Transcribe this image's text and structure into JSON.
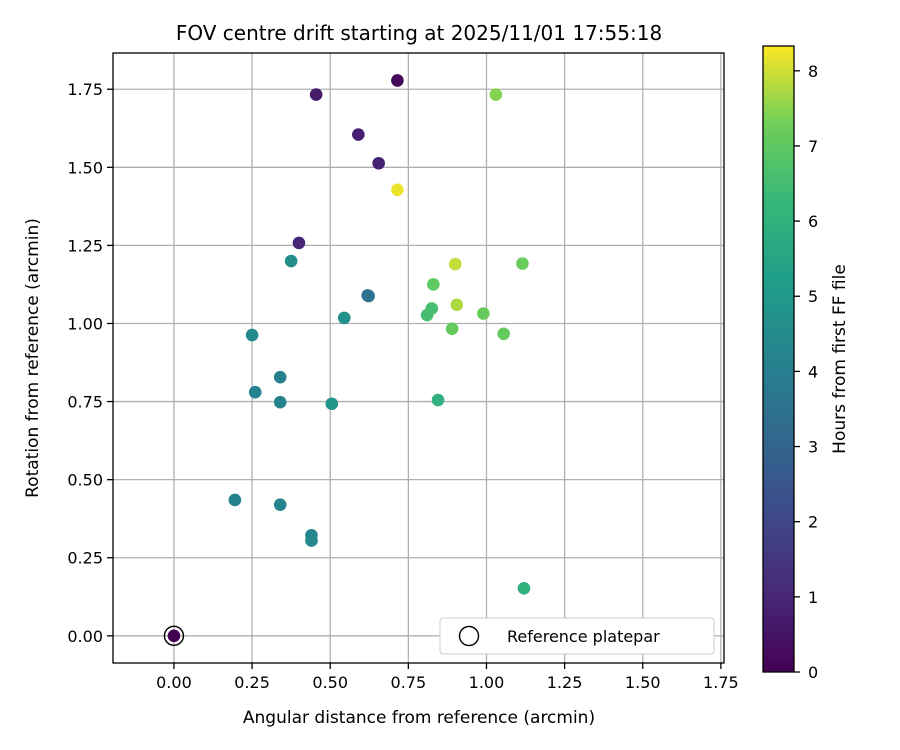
{
  "chart_data": {
    "type": "scatter",
    "title": "FOV centre drift starting at 2025/11/01 17:55:18",
    "xlabel": "Angular distance from reference (arcmin)",
    "ylabel": "Rotation from reference (arcmin)",
    "xlim": [
      -0.195,
      1.76
    ],
    "ylim": [
      -0.087,
      1.866
    ],
    "xticks": [
      0.0,
      0.25,
      0.5,
      0.75,
      1.0,
      1.25,
      1.5,
      1.75
    ],
    "yticks": [
      0.0,
      0.25,
      0.5,
      0.75,
      1.0,
      1.25,
      1.5,
      1.75
    ],
    "xtick_labels": [
      "0.00",
      "0.25",
      "0.50",
      "0.75",
      "1.00",
      "1.25",
      "1.50",
      "1.75"
    ],
    "ytick_labels": [
      "0.00",
      "0.25",
      "0.50",
      "0.75",
      "1.00",
      "1.25",
      "1.50",
      "1.75"
    ],
    "grid": true,
    "colorbar": {
      "label": "Hours from first FF file",
      "colormap": "viridis",
      "range": [
        0,
        8.33
      ],
      "ticks": [
        0,
        1,
        2,
        3,
        4,
        5,
        6,
        7,
        8
      ],
      "tick_labels": [
        "0",
        "1",
        "2",
        "3",
        "4",
        "5",
        "6",
        "7",
        "8"
      ]
    },
    "legend": {
      "location": "bottom-right",
      "entries": [
        "Reference platepar"
      ]
    },
    "reference_point": {
      "x": 0.0,
      "y": 0.0
    },
    "points": [
      {
        "x": 0.0,
        "y": 0.0,
        "hours": 0.0
      },
      {
        "x": 0.715,
        "y": 1.778,
        "hours": 0.15
      },
      {
        "x": 0.455,
        "y": 1.733,
        "hours": 0.7
      },
      {
        "x": 0.59,
        "y": 1.605,
        "hours": 0.85
      },
      {
        "x": 0.655,
        "y": 1.513,
        "hours": 0.9
      },
      {
        "x": 0.4,
        "y": 1.258,
        "hours": 1.0
      },
      {
        "x": 0.62,
        "y": 1.09,
        "hours": 3.2
      },
      {
        "x": 0.623,
        "y": 1.088,
        "hours": 3.5
      },
      {
        "x": 0.34,
        "y": 0.828,
        "hours": 4.1
      },
      {
        "x": 0.26,
        "y": 0.78,
        "hours": 4.15
      },
      {
        "x": 0.34,
        "y": 0.748,
        "hours": 4.2
      },
      {
        "x": 0.195,
        "y": 0.435,
        "hours": 4.2
      },
      {
        "x": 0.34,
        "y": 0.42,
        "hours": 4.25
      },
      {
        "x": 0.44,
        "y": 0.322,
        "hours": 4.35
      },
      {
        "x": 0.44,
        "y": 0.305,
        "hours": 4.4
      },
      {
        "x": 0.25,
        "y": 0.963,
        "hours": 4.45
      },
      {
        "x": 0.375,
        "y": 1.2,
        "hours": 4.6
      },
      {
        "x": 0.545,
        "y": 1.018,
        "hours": 4.7
      },
      {
        "x": 0.505,
        "y": 0.743,
        "hours": 4.9
      },
      {
        "x": 0.845,
        "y": 0.755,
        "hours": 6.0
      },
      {
        "x": 1.12,
        "y": 0.152,
        "hours": 6.0
      },
      {
        "x": 0.81,
        "y": 1.027,
        "hours": 6.55
      },
      {
        "x": 0.825,
        "y": 1.048,
        "hours": 6.6
      },
      {
        "x": 0.83,
        "y": 1.125,
        "hours": 7.0
      },
      {
        "x": 0.89,
        "y": 0.983,
        "hours": 7.1
      },
      {
        "x": 1.055,
        "y": 0.967,
        "hours": 7.1
      },
      {
        "x": 0.99,
        "y": 1.032,
        "hours": 7.15
      },
      {
        "x": 1.115,
        "y": 1.192,
        "hours": 7.2
      },
      {
        "x": 1.03,
        "y": 1.733,
        "hours": 7.45
      },
      {
        "x": 0.905,
        "y": 1.06,
        "hours": 7.75
      },
      {
        "x": 0.9,
        "y": 1.19,
        "hours": 7.9
      },
      {
        "x": 0.715,
        "y": 1.428,
        "hours": 8.2
      }
    ]
  }
}
